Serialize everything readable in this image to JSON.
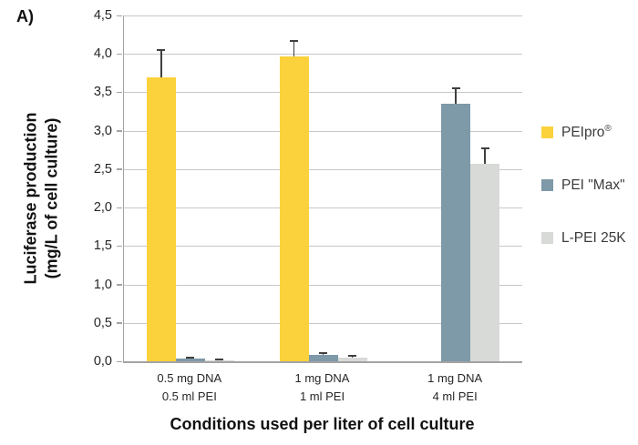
{
  "panel_label": "A)",
  "colors": {
    "peipro": "#fbd23b",
    "pei_max": "#7e99a8",
    "lpei_25k": "#d7dad6",
    "gridline": "#c8c8c8",
    "axis": "#a3a3a3",
    "error_bar": "#3f3f3f",
    "text": "#262626"
  },
  "legend": {
    "items": [
      {
        "label": "PEIpro",
        "sup": "®"
      },
      {
        "label": "PEI \"Max\"",
        "sup": ""
      },
      {
        "label": "L-PEI 25K",
        "sup": ""
      }
    ]
  },
  "chart_data": {
    "type": "bar",
    "title": "",
    "panel": "A)",
    "xlabel": "Conditions used per liter of cell culture",
    "ylabel": "Luciferase production (mg/L of cell culture)",
    "ylabel_lines": [
      "Luciferase production",
      "(mg/L of cell culture)"
    ],
    "ylim": [
      0,
      4.5
    ],
    "ytick_step": 0.5,
    "ytick_labels": [
      "0,0",
      "0,5",
      "1,0",
      "1,5",
      "2,0",
      "2,5",
      "3,0",
      "3,5",
      "4,0",
      "4,5"
    ],
    "decimal_separator": ",",
    "grid": true,
    "legend_position": "right",
    "categories": [
      [
        "0.5 mg DNA",
        "0.5 ml PEI"
      ],
      [
        "1 mg DNA",
        "1 ml PEI"
      ],
      [
        "1 mg DNA",
        "4 ml PEI"
      ]
    ],
    "series": [
      {
        "name": "PEIpro®",
        "color": "#fbd23b",
        "values": [
          3.7,
          3.97,
          null
        ],
        "errors": [
          0.35,
          0.2,
          null
        ]
      },
      {
        "name": "PEI \"Max\"",
        "color": "#7e99a8",
        "values": [
          0.03,
          0.08,
          3.35
        ],
        "errors": [
          0.02,
          0.03,
          0.2
        ]
      },
      {
        "name": "L-PEI 25K",
        "color": "#d7dad6",
        "values": [
          0.01,
          0.05,
          2.57
        ],
        "errors": [
          0.01,
          0.02,
          0.2
        ]
      }
    ]
  }
}
